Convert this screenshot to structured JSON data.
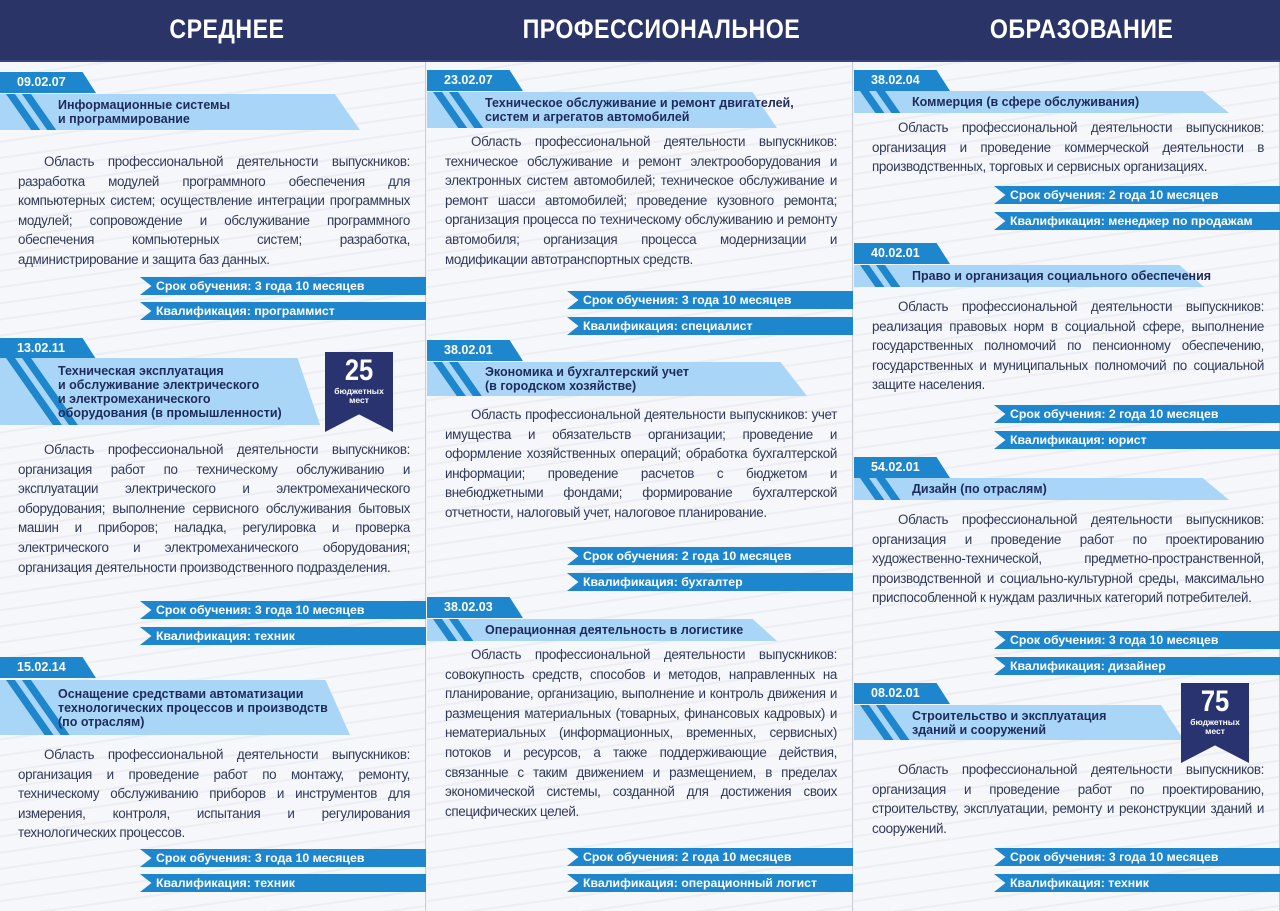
{
  "header": {
    "titles": [
      "СРЕДНЕЕ",
      "ПРОФЕССИОНАЛЬНОЕ",
      "ОБРАЗОВАНИЕ"
    ]
  },
  "colors": {
    "navy": "#2b3467",
    "blue": "#1d86cc",
    "light_blue": "#a9d6f6"
  },
  "columns": [
    {
      "sections": [
        {
          "code": "09.02.07",
          "title": [
            "Информационные системы",
            "и программирование"
          ],
          "description": "Область профессиональной деятельности выпускников: разработка модулей программного обеспечения для компьютерных систем; осуществление интеграции программных модулей; сопровождение и обслуживание программного обеспечения компьютерных систем; разработка, администрирование и защита баз данных.",
          "duration": "Срок обучения: 3 года 10 месяцев",
          "qualification": "Квалификация: программист"
        },
        {
          "code": "13.02.11",
          "title": [
            "Техническая эксплуатация",
            "и обслуживание электрического",
            "и электромеханического",
            "оборудования (в промышленности)"
          ],
          "badge": {
            "number": "25",
            "label": "бюджетных мест"
          },
          "description": "Область профессиональной деятельности выпускников: организация работ по техническому обслуживанию и эксплуатации электрического и электромеханического оборудования; выполнение сервисного обслуживания бытовых машин и приборов; наладка, регулировка и проверка электрического и электромеханического оборудования; организация деятельности производственного подразделения.",
          "duration": "Срок обучения: 3 года 10 месяцев",
          "qualification": "Квалификация: техник"
        },
        {
          "code": "15.02.14",
          "title": [
            "Оснащение средствами автоматизации",
            "технологических процессов и производств",
            "(по отраслям)"
          ],
          "description": "Область профессиональной деятельности выпускников: организация и проведение работ по монтажу, ремонту, техническому обслуживанию приборов и инструментов для измерения, контроля, испытания и регулирования технологических процессов.",
          "duration": "Срок обучения: 3 года 10 месяцев",
          "qualification": "Квалификация: техник"
        }
      ]
    },
    {
      "sections": [
        {
          "code": "23.02.07",
          "title": [
            "Техническое обслуживание и ремонт двигателей,",
            "систем и агрегатов автомобилей"
          ],
          "description": "Область профессиональной деятельности выпускников: техническое обслуживание и ремонт электрооборудования и электронных систем автомобилей; техническое обслуживание и ремонт шасси автомобилей; проведение кузовного ремонта; организация процесса по техническому обслуживанию и ремонту автомобиля; организация процесса модернизации и модификации автотранспортных средств.",
          "duration": "Срок обучения: 3 года 10 месяцев",
          "qualification": "Квалификация: специалист"
        },
        {
          "code": "38.02.01",
          "title": [
            "Экономика и бухгалтерский учет",
            "(в городском хозяйстве)"
          ],
          "description": "Область профессиональной деятельности выпускников: учет имущества и обязательств организации; проведение и оформление хозяйственных операций; обработка бухгалтерской информации; проведение расчетов с бюджетом и внебюджетными фондами; формирование бухгалтерской отчетности, налоговый учет, налоговое планирование.",
          "duration": "Срок обучения: 2 года 10 месяцев",
          "qualification": "Квалификация: бухгалтер"
        },
        {
          "code": "38.02.03",
          "title": [
            "Операционная деятельность в логистике"
          ],
          "description": "Область профессиональной деятельности выпускников: совокупность средств, способов и методов, направленных на планирование, организацию, выполнение и контроль движения и размещения материальных (товарных, финансовых кадровых) и нематериальных (информационных, временных, сервисных) потоков и ресурсов, а также поддерживающие действия, связанные с таким движением и размещением, в пределах экономической системы, созданной для достижения своих специфических целей.",
          "duration": "Срок обучения: 2 года 10 месяцев",
          "qualification": "Квалификация: операционный логист"
        }
      ]
    },
    {
      "sections": [
        {
          "code": "38.02.04",
          "title": [
            "Коммерция (в сфере обслуживания)"
          ],
          "description": "Область профессиональной деятельности выпускников: организация и проведение коммерческой деятельности в производственных, торговых и сервисных организациях.",
          "duration": "Срок обучения: 2 года 10 месяцев",
          "qualification": "Квалификация: менеджер по продажам"
        },
        {
          "code": "40.02.01",
          "title": [
            "Право и организация социального обеспечения"
          ],
          "description": "Область профессиональной деятельности выпускников: реализация правовых норм в социальной сфере, выполнение государственных полномочий по пенсионному обеспечению, государственных и муниципальных полномочий по социальной защите населения.",
          "duration": "Срок обучения: 2 года 10 месяцев",
          "qualification": "Квалификация: юрист"
        },
        {
          "code": "54.02.01",
          "title": [
            "Дизайн (по отраслям)"
          ],
          "description": "Область профессиональной деятельности выпускников: организация и проведение работ по проектированию художественно-технической, предметно-пространственной, производственной и социально-культурной среды, максимально приспособленной к нуждам различных категорий потребителей.",
          "duration": "Срок обучения: 3 года 10 месяцев",
          "qualification": "Квалификация: дизайнер"
        },
        {
          "code": "08.02.01",
          "title": [
            "Строительство и эксплуатация",
            "зданий и сооружений"
          ],
          "badge": {
            "number": "75",
            "label": "бюджетных мест"
          },
          "description": "Область профессиональной деятельности выпускников: организация и проведение работ по проектированию, строительству, эксплуатации, ремонту и реконструкции зданий и сооружений.",
          "duration": "Срок обучения: 3 года 10 месяцев",
          "qualification": "Квалификация: техник"
        }
      ]
    }
  ]
}
